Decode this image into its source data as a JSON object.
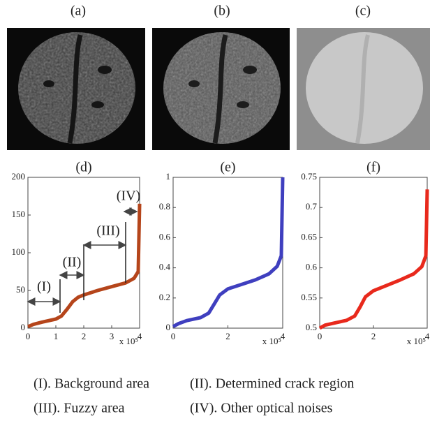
{
  "image_panels": [
    {
      "label": "(a)"
    },
    {
      "label": "(b)"
    },
    {
      "label": "(c)"
    }
  ],
  "chart_data": [
    {
      "type": "line",
      "title": "(d)",
      "color": "#b5451b",
      "x": [
        0,
        0.2,
        0.5,
        1.0,
        1.2,
        1.4,
        1.6,
        1.8,
        2.0,
        2.5,
        3.0,
        3.5,
        3.8,
        3.95,
        4.0
      ],
      "values": [
        2,
        5,
        8,
        12,
        16,
        25,
        35,
        41,
        44,
        50,
        55,
        60,
        66,
        75,
        165
      ],
      "xlim": [
        0,
        4
      ],
      "xticks": [
        0,
        1,
        2,
        3,
        4
      ],
      "ylim": [
        0,
        200
      ],
      "yticks": [
        0,
        50,
        100,
        150,
        200
      ],
      "x_multiplier": "x 10⁵",
      "annotations": [
        "(I)",
        "(II)",
        "(III)",
        "(IV)"
      ]
    },
    {
      "type": "line",
      "title": "(e)",
      "color": "#3f3fbf",
      "x": [
        0,
        0.2,
        0.5,
        1.0,
        1.3,
        1.5,
        1.7,
        2.0,
        2.5,
        3.0,
        3.5,
        3.8,
        3.95,
        4.0
      ],
      "values": [
        0.01,
        0.03,
        0.05,
        0.07,
        0.1,
        0.16,
        0.22,
        0.26,
        0.29,
        0.32,
        0.36,
        0.41,
        0.48,
        1.0
      ],
      "xlim": [
        0,
        4
      ],
      "xticks": [
        0,
        2,
        4
      ],
      "ylim": [
        0,
        1
      ],
      "yticks": [
        0,
        0.2,
        0.4,
        0.6,
        0.8,
        1
      ],
      "x_multiplier": "x 10⁵"
    },
    {
      "type": "line",
      "title": "(f)",
      "color": "#e8291c",
      "x": [
        0,
        0.2,
        0.5,
        1.0,
        1.3,
        1.5,
        1.7,
        2.0,
        2.5,
        3.0,
        3.5,
        3.8,
        3.95,
        4.0
      ],
      "values": [
        0.5,
        0.505,
        0.508,
        0.513,
        0.52,
        0.535,
        0.552,
        0.562,
        0.571,
        0.58,
        0.59,
        0.602,
        0.62,
        0.73
      ],
      "xlim": [
        0,
        4
      ],
      "xticks": [
        0,
        2,
        4
      ],
      "ylim": [
        0.5,
        0.75
      ],
      "yticks": [
        0.5,
        0.55,
        0.6,
        0.65,
        0.7,
        0.75
      ],
      "x_multiplier": "x 10⁵"
    }
  ],
  "notes": [
    [
      "(I). Background area",
      "(II). Determined crack region"
    ],
    [
      "(III). Fuzzy area",
      "(IV).  Other optical noises"
    ]
  ]
}
